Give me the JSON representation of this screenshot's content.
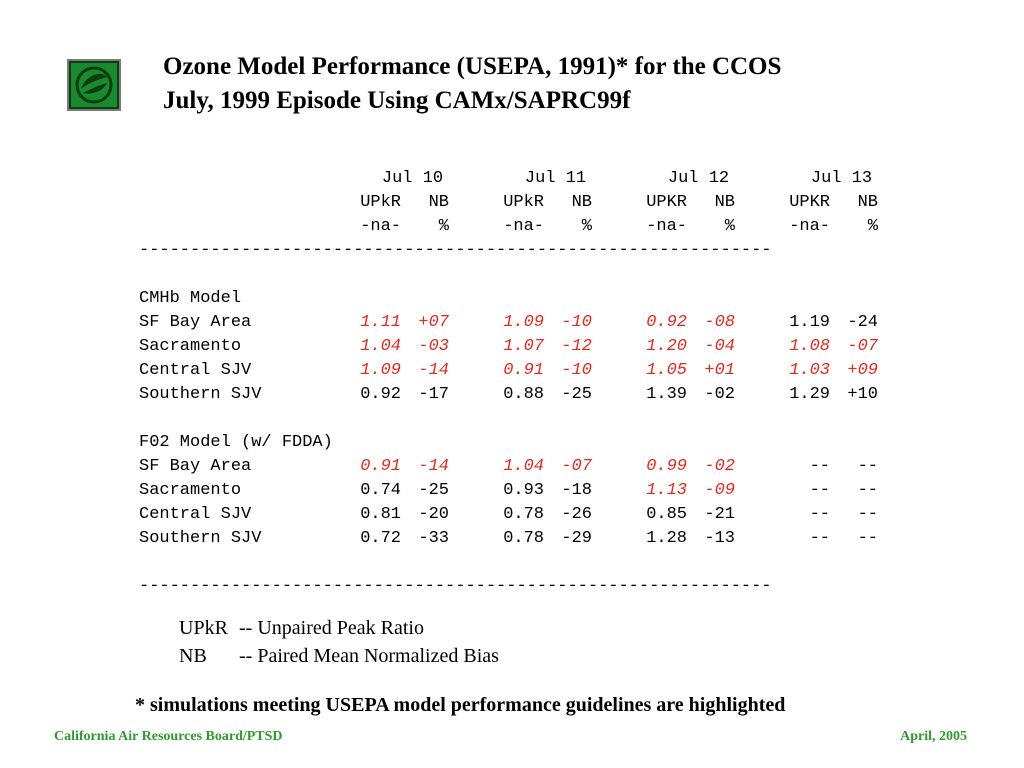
{
  "title": {
    "line1": "Ozone Model Performance (USEPA, 1991)* for the CCOS",
    "line2": "July, 1999 Episode Using CAMx/SAPRC99f"
  },
  "logo": {
    "icon": "leaf-icon",
    "color": "#1a8a2e"
  },
  "highlight_color": "#e8281c",
  "header": {
    "days": [
      "Jul 10",
      "Jul 11",
      "Jul 12",
      "Jul 13"
    ],
    "metrics": [
      [
        "UPkR",
        "NB"
      ],
      [
        "UPkR",
        "NB"
      ],
      [
        "UPKR",
        "NB"
      ],
      [
        "UPKR",
        "NB"
      ]
    ],
    "units": [
      [
        "-na-",
        "%"
      ],
      [
        "-na-",
        "%"
      ],
      [
        "-na-",
        "%"
      ],
      [
        "-na-",
        "%"
      ]
    ]
  },
  "divider": "--------------------------------------------------------------",
  "sections": [
    {
      "title": "CMHb Model",
      "rows": [
        {
          "label": "SF Bay Area",
          "cells": [
            [
              "1.11",
              "+07",
              true
            ],
            [
              "1.09",
              "-10",
              true
            ],
            [
              "0.92",
              "-08",
              true
            ],
            [
              "1.19",
              "-24",
              false
            ]
          ]
        },
        {
          "label": "Sacramento",
          "cells": [
            [
              "1.04",
              "-03",
              true
            ],
            [
              "1.07",
              "-12",
              true
            ],
            [
              "1.20",
              "-04",
              true
            ],
            [
              "1.08",
              "-07",
              true
            ]
          ]
        },
        {
          "label": "Central SJV",
          "cells": [
            [
              "1.09",
              "-14",
              true
            ],
            [
              "0.91",
              "-10",
              true
            ],
            [
              "1.05",
              "+01",
              true
            ],
            [
              "1.03",
              "+09",
              true
            ]
          ]
        },
        {
          "label": "Southern SJV",
          "cells": [
            [
              "0.92",
              "-17",
              false
            ],
            [
              "0.88",
              "-25",
              false
            ],
            [
              "1.39",
              "-02",
              false
            ],
            [
              "1.29",
              "+10",
              false
            ]
          ]
        }
      ]
    },
    {
      "title": "F02 Model (w/ FDDA)",
      "rows": [
        {
          "label": "SF Bay Area",
          "cells": [
            [
              "0.91",
              "-14",
              true
            ],
            [
              "1.04",
              "-07",
              true
            ],
            [
              "0.99",
              "-02",
              true
            ],
            [
              "--",
              "--",
              false
            ]
          ]
        },
        {
          "label": "Sacramento",
          "cells": [
            [
              "0.74",
              "-25",
              false
            ],
            [
              "0.93",
              "-18",
              false
            ],
            [
              "1.13",
              "-09",
              true
            ],
            [
              "--",
              "--",
              false
            ]
          ]
        },
        {
          "label": "Central SJV",
          "cells": [
            [
              "0.81",
              "-20",
              false
            ],
            [
              "0.78",
              "-26",
              false
            ],
            [
              "0.85",
              "-21",
              false
            ],
            [
              "--",
              "--",
              false
            ]
          ]
        },
        {
          "label": "Southern SJV",
          "cells": [
            [
              "0.72",
              "-33",
              false
            ],
            [
              "0.78",
              "-29",
              false
            ],
            [
              "1.28",
              "-13",
              false
            ],
            [
              "--",
              "--",
              false
            ]
          ]
        }
      ]
    }
  ],
  "legend": [
    {
      "abbr": "UPkR",
      "desc": "-- Unpaired Peak Ratio"
    },
    {
      "abbr": "NB",
      "desc": "-- Paired Mean Normalized Bias"
    }
  ],
  "footnote": "* simulations meeting USEPA model performance guidelines are highlighted",
  "footer": {
    "left": "California Air Resources Board/PTSD",
    "right": "April, 2005",
    "color": "#2d9b2d"
  }
}
